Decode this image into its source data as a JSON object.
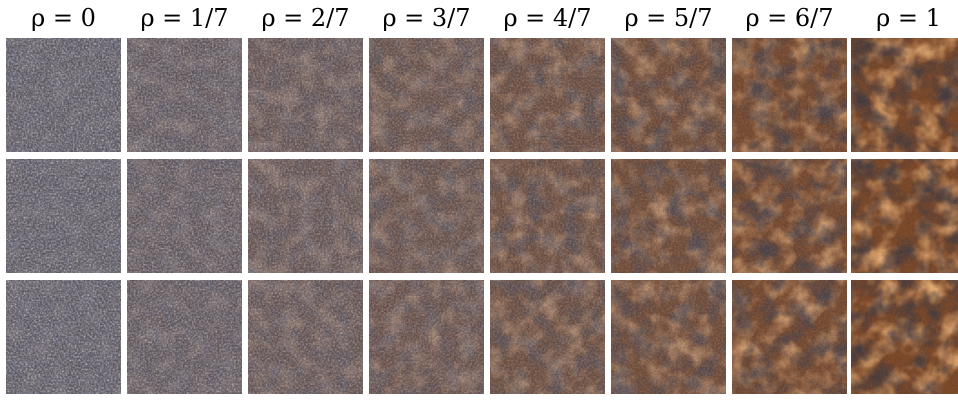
{
  "columns": [
    {
      "label": "ρ = 0",
      "rho": 0
    },
    {
      "label": "ρ = 1/7",
      "rho": 0.142857
    },
    {
      "label": "ρ = 2/7",
      "rho": 0.285714
    },
    {
      "label": "ρ = 3/7",
      "rho": 0.428571
    },
    {
      "label": "ρ = 4/7",
      "rho": 0.571429
    },
    {
      "label": "ρ = 5/7",
      "rho": 0.714286
    },
    {
      "label": "ρ = 6/7",
      "rho": 0.857143
    },
    {
      "label": "ρ = 1",
      "rho": 1
    }
  ],
  "rows": 3,
  "palette": {
    "neutral_light": "#b8aca8",
    "neutral_dark": "#1f1f2a",
    "blue_dark": "#1d2233",
    "rust": "#c0733a",
    "brown": "#5a3a25",
    "black": "#0d0a0a"
  }
}
